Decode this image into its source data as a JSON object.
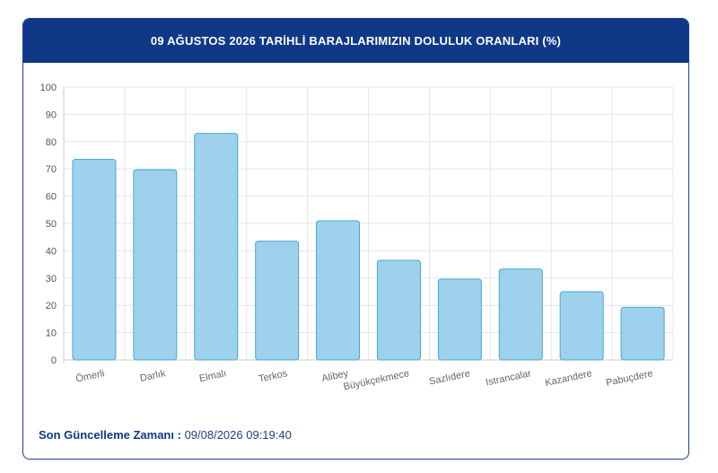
{
  "header": {
    "title": "09 AĞUSTOS 2026 TARİHLİ BARAJLARIMIZIN DOLULUK ORANLARI (%)"
  },
  "footer": {
    "label": "Son Güncelleme Zamanı :",
    "value": "09/08/2026 09:19:40"
  },
  "chart_data": {
    "type": "bar",
    "categories": [
      "Ömerli",
      "Darlık",
      "Elmalı",
      "Terkos",
      "Alibey",
      "Büyükçekmece",
      "Sazlıdere",
      "Istrancalar",
      "Kazandere",
      "Pabuçdere"
    ],
    "values": [
      73.5,
      69.7,
      83.0,
      43.5,
      51.0,
      36.5,
      29.6,
      33.3,
      25.0,
      19.3
    ],
    "yticks": [
      0,
      10,
      20,
      30,
      40,
      50,
      60,
      70,
      80,
      90,
      100
    ],
    "ylim": [
      0,
      100
    ],
    "grid": true,
    "title": "",
    "xlabel": "",
    "ylabel": "",
    "colors": {
      "bar_fill": "#9dd1ec",
      "bar_stroke": "#4aa6d6",
      "grid": "#e6e6e6",
      "axis": "#cccccc"
    }
  }
}
